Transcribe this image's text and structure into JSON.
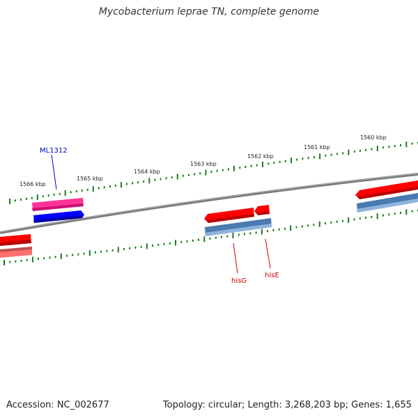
{
  "title": "Mycobacterium leprae TN, complete genome",
  "footer": {
    "accession": "Accession: NC_002677",
    "stats": "Topology: circular; Length: 3,268,203 bp; Genes: 1,655"
  },
  "ticks": [
    "1566 kbp",
    "1565 kbp",
    "1564 kbp",
    "1563 kbp",
    "1562 kbp",
    "1561 kbp",
    "1560 kbp"
  ],
  "genes": {
    "ml1312": {
      "label": "ML1312",
      "color": "#0000cc"
    },
    "hisG": {
      "label": "hisG",
      "color": "#cc0000"
    },
    "hisE": {
      "label": "hisE",
      "color": "#cc0000"
    }
  },
  "colors": {
    "backbone": "#7a7a7a",
    "ticks": "#1a7a1a",
    "gene_red": "#ff0000",
    "gene_pink": "#ff3399",
    "gene_blue": "#0000ff",
    "gene_steel": "#4a7ab0",
    "gene_faded_red": "#ff6666",
    "gene_faded_pink": "#e08080"
  }
}
